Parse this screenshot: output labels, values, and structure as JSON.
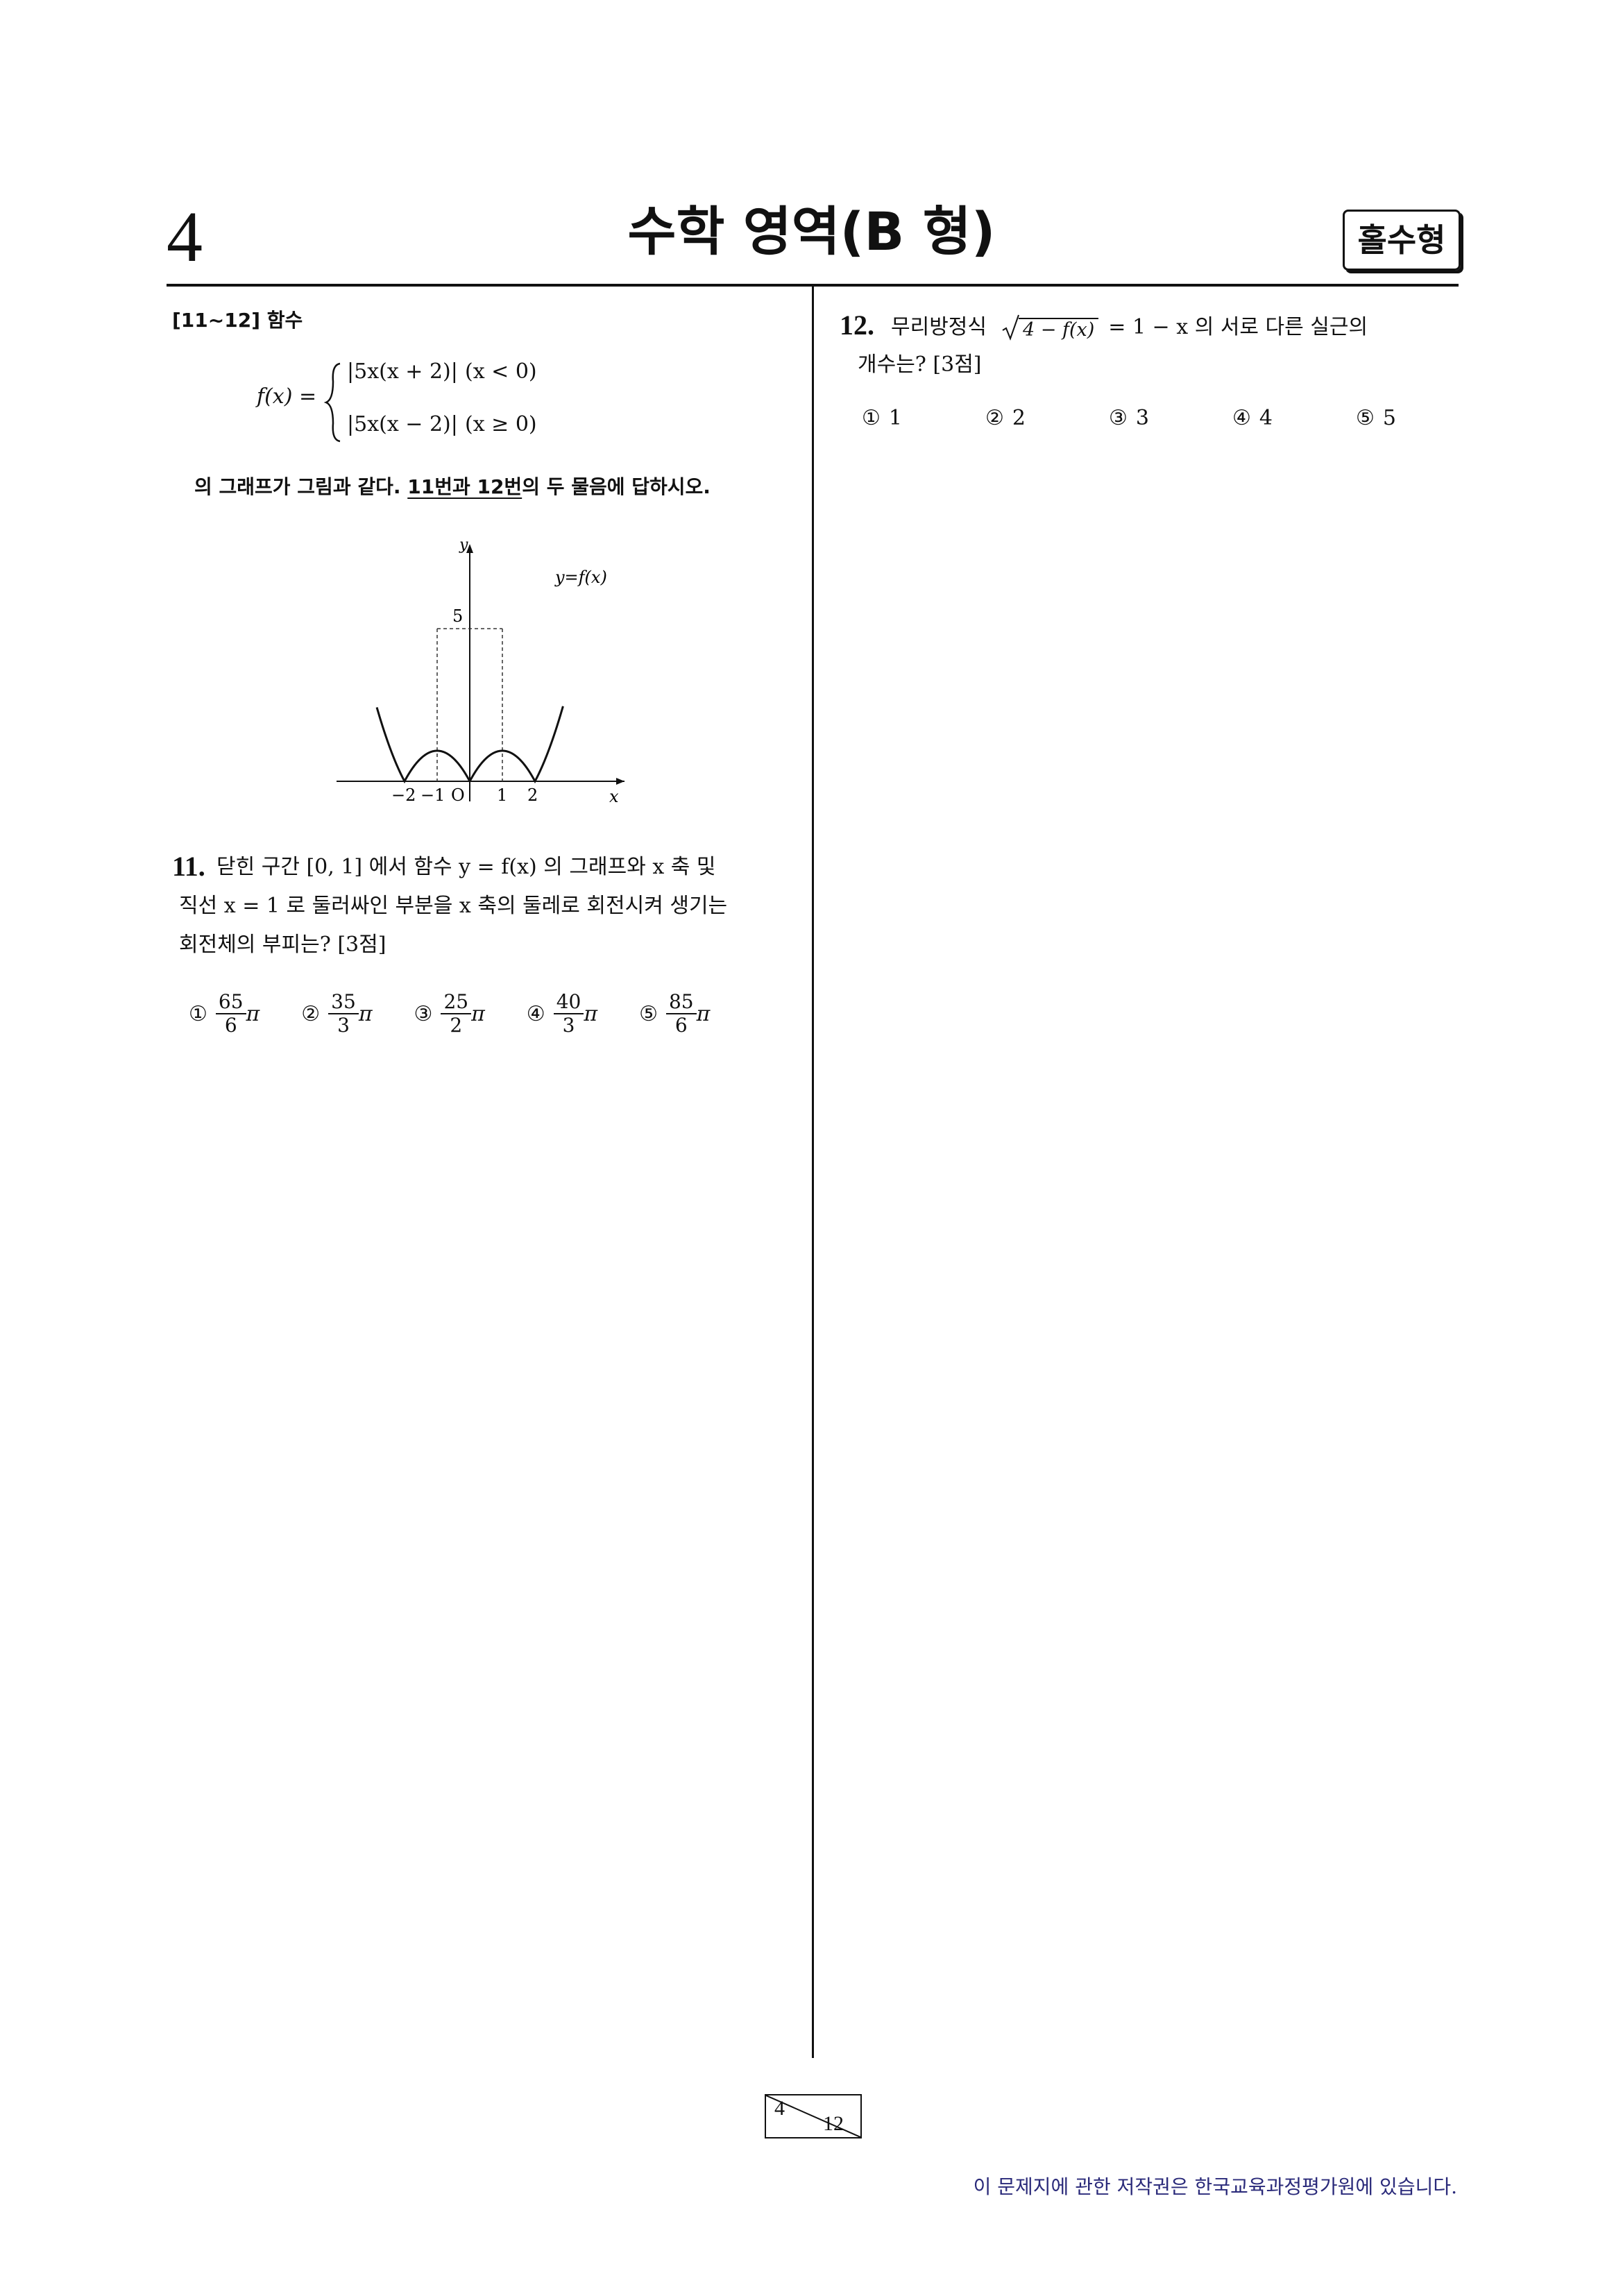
{
  "header": {
    "page_number": "4",
    "title": "수학 영역(B 형)",
    "badge": "홀수형"
  },
  "intro": {
    "range_label": "[11~12] 함수",
    "func_lhs": "f(x) =",
    "case1_expr": "|5x(x + 2)|",
    "case1_cond": "(x < 0)",
    "case2_expr": "|5x(x − 2)|",
    "case2_cond": "(x ≥ 0)",
    "instruction_pre": "의 그래프가 그림과 같다. ",
    "instruction_ul": "11번과 12번",
    "instruction_post": "의 두 물음에 답하시오."
  },
  "graph": {
    "y_axis_label": "y",
    "x_axis_label": "x",
    "curve_label": "y=f(x)",
    "y_tick": "5",
    "x_ticks": [
      "−2",
      "−1",
      "O",
      "1",
      "2"
    ]
  },
  "q11": {
    "number": "11.",
    "line1": "닫힌 구간 [0, 1] 에서 함수 y = f(x) 의 그래프와 x 축 및",
    "line2": "직선 x = 1 로 둘러싸인 부분을 x 축의 둘레로 회전시켜 생기는",
    "line3": "회전체의 부피는? [3점]",
    "choices": [
      {
        "mark": "①",
        "num": "65",
        "den": "6",
        "suffix": "π"
      },
      {
        "mark": "②",
        "num": "35",
        "den": "3",
        "suffix": "π"
      },
      {
        "mark": "③",
        "num": "25",
        "den": "2",
        "suffix": "π"
      },
      {
        "mark": "④",
        "num": "40",
        "den": "3",
        "suffix": "π"
      },
      {
        "mark": "⑤",
        "num": "85",
        "den": "6",
        "suffix": "π"
      }
    ]
  },
  "q12": {
    "number": "12.",
    "line1_pre": "무리방정식",
    "radicand": "4 − f(x)",
    "line1_post": "= 1 − x 의 서로 다른 실근의",
    "line2": "개수는? [3점]",
    "choices": [
      {
        "mark": "①",
        "value": "1"
      },
      {
        "mark": "②",
        "value": "2"
      },
      {
        "mark": "③",
        "value": "3"
      },
      {
        "mark": "④",
        "value": "4"
      },
      {
        "mark": "⑤",
        "value": "5"
      }
    ]
  },
  "footer": {
    "page_current": "4",
    "page_total": "12",
    "copyright": "이 문제지에 관한 저작권은 한국교육과정평가원에 있습니다."
  }
}
